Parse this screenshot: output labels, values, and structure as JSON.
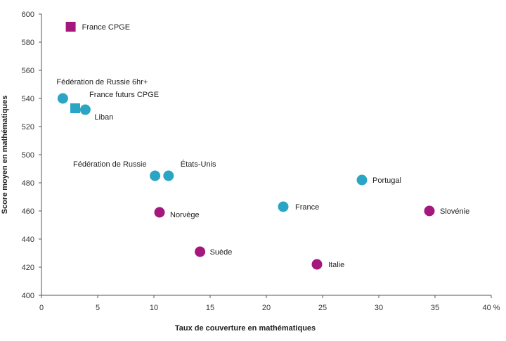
{
  "chart_data": {
    "type": "scatter",
    "title": "",
    "xlabel": "Taux de couverture en mathématiques",
    "ylabel": "Score moyen en mathématiques",
    "xlim": [
      0,
      40
    ],
    "ylim": [
      400,
      600
    ],
    "x_ticks": [
      0,
      5,
      10,
      15,
      20,
      25,
      30,
      35,
      40
    ],
    "x_tick_labels": [
      "0",
      "5",
      "10",
      "15",
      "20",
      "25",
      "30",
      "35",
      "40 %"
    ],
    "y_ticks": [
      400,
      420,
      440,
      460,
      480,
      500,
      520,
      540,
      560,
      580,
      600
    ],
    "y_tick_labels": [
      "400",
      "420",
      "440",
      "460",
      "480",
      "500",
      "520",
      "540",
      "560",
      "580",
      "600"
    ],
    "grid": false,
    "colors": {
      "teal": "#2aa6c4",
      "purple": "#a4187e"
    },
    "points": [
      {
        "label": "France CPGE",
        "x": 2.6,
        "y": 591,
        "marker": "square",
        "color": "#a4187e"
      },
      {
        "label": "Fédération de Russie 6hr+",
        "x": 1.9,
        "y": 540,
        "marker": "circle",
        "color": "#2aa6c4"
      },
      {
        "label": "France futurs CPGE",
        "x": 3.0,
        "y": 533,
        "marker": "square",
        "color": "#2aa6c4"
      },
      {
        "label": "Liban",
        "x": 3.9,
        "y": 532,
        "marker": "circle",
        "color": "#2aa6c4"
      },
      {
        "label": "Fédération de Russie",
        "x": 10.1,
        "y": 485,
        "marker": "circle",
        "color": "#2aa6c4"
      },
      {
        "label": "États-Unis",
        "x": 11.3,
        "y": 485,
        "marker": "circle",
        "color": "#2aa6c4"
      },
      {
        "label": "Portugal",
        "x": 28.5,
        "y": 482,
        "marker": "circle",
        "color": "#2aa6c4"
      },
      {
        "label": "France",
        "x": 21.5,
        "y": 463,
        "marker": "circle",
        "color": "#2aa6c4"
      },
      {
        "label": "Norvège",
        "x": 10.5,
        "y": 459,
        "marker": "circle",
        "color": "#a4187e"
      },
      {
        "label": "Slovénie",
        "x": 34.5,
        "y": 460,
        "marker": "circle",
        "color": "#a4187e"
      },
      {
        "label": "Suède",
        "x": 14.1,
        "y": 431,
        "marker": "circle",
        "color": "#a4187e"
      },
      {
        "label": "Italie",
        "x": 24.5,
        "y": 422,
        "marker": "circle",
        "color": "#a4187e"
      }
    ]
  }
}
